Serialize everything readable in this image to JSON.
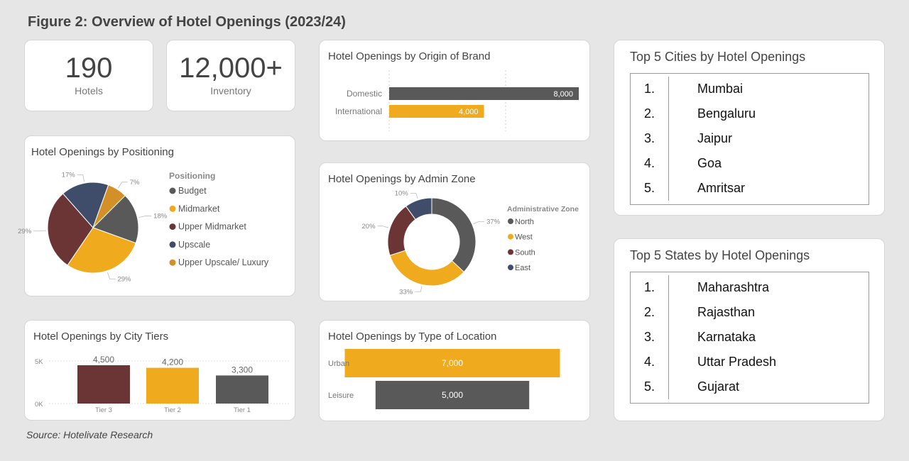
{
  "figure_title": "Figure 2: Overview of Hotel Openings (2023/24)",
  "source": "Source: Hotelivate Research",
  "kpis": [
    {
      "value": "190",
      "label": "Hotels"
    },
    {
      "value": "12,000+",
      "label": "Inventory"
    }
  ],
  "colors": {
    "budget": "#595959",
    "midmarket": "#f0aa1e",
    "upper_midmarket": "#6b3535",
    "upscale": "#3f4d6b",
    "luxury": "#d49028"
  },
  "chart_data": [
    {
      "id": "positioning",
      "type": "pie",
      "title": "Hotel Openings by Positioning",
      "legend_title": "Positioning",
      "labels": [
        "Budget",
        "Midmarket",
        "Upper Midmarket",
        "Upscale",
        "Upper Upscale/ Luxury"
      ],
      "values": [
        18,
        29,
        29,
        17,
        7
      ],
      "data_labels": [
        "18%",
        "29%",
        "29%",
        "17%",
        "7%"
      ],
      "colors": [
        "#595959",
        "#f0aa1e",
        "#6b3535",
        "#3f4d6b",
        "#d49028"
      ]
    },
    {
      "id": "city_tiers",
      "type": "bar",
      "title": "Hotel Openings by City Tiers",
      "categories": [
        "Tier 3",
        "Tier 2",
        "Tier 1"
      ],
      "values": [
        4500,
        4200,
        3300
      ],
      "data_labels": [
        "4,500",
        "4,200",
        "3,300"
      ],
      "colors": [
        "#6b3535",
        "#f0aa1e",
        "#595959"
      ],
      "yticks": [
        "5K",
        "0K"
      ],
      "ylim": [
        0,
        5000
      ]
    },
    {
      "id": "origin_brand",
      "type": "bar",
      "orientation": "horizontal",
      "title": "Hotel Openings by Origin of Brand",
      "categories": [
        "Domestic",
        "International"
      ],
      "values": [
        8000,
        4000
      ],
      "data_labels": [
        "8,000",
        "4,000"
      ],
      "colors": [
        "#595959",
        "#f0aa1e"
      ],
      "xlim": [
        0,
        8000
      ]
    },
    {
      "id": "admin_zone",
      "type": "pie",
      "style": "donut",
      "title": "Hotel Openings by Admin Zone",
      "legend_title": "Administrative Zone",
      "labels": [
        "North",
        "West",
        "South",
        "East"
      ],
      "values": [
        37,
        33,
        20,
        10
      ],
      "data_labels": [
        "37%",
        "33%",
        "20%",
        "10%"
      ],
      "colors": [
        "#595959",
        "#f0aa1e",
        "#6b3535",
        "#3f4d6b"
      ]
    },
    {
      "id": "location_type",
      "type": "bar",
      "orientation": "horizontal",
      "style": "funnel",
      "title": "Hotel Openings by Type of Location",
      "categories": [
        "Urban",
        "Leisure"
      ],
      "values": [
        7000,
        5000
      ],
      "data_labels": [
        "7,000",
        "5,000"
      ],
      "colors": [
        "#f0aa1e",
        "#595959"
      ]
    },
    {
      "id": "top_cities",
      "type": "table",
      "title": "Top 5 Cities by Hotel Openings",
      "ranks": [
        "1.",
        "2.",
        "3.",
        "4.",
        "5."
      ],
      "items": [
        "Mumbai",
        "Bengaluru",
        "Jaipur",
        "Goa",
        "Amritsar"
      ]
    },
    {
      "id": "top_states",
      "type": "table",
      "title": "Top 5 States by Hotel Openings",
      "ranks": [
        "1.",
        "2.",
        "3.",
        "4.",
        "5."
      ],
      "items": [
        "Maharashtra",
        "Rajasthan",
        "Karnataka",
        "Uttar Pradesh",
        "Gujarat"
      ]
    }
  ]
}
